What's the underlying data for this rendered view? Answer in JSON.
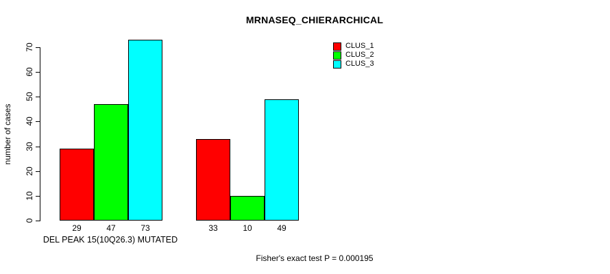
{
  "chart_data": {
    "type": "bar",
    "title": "MRNASEQ_CHIERARCHICAL",
    "ylabel": "number of cases",
    "xlabel": "DEL PEAK 15(10Q26.3) MUTATED",
    "annotation": "Fisher's exact test P = 0.000195",
    "ylim": [
      0,
      70
    ],
    "yticks": [
      0,
      10,
      20,
      30,
      40,
      50,
      60,
      70
    ],
    "grid": false,
    "legend_position": "top-right-inside",
    "series": [
      {
        "name": "CLUS_1",
        "color": "#ff0000"
      },
      {
        "name": "CLUS_2",
        "color": "#00ff00"
      },
      {
        "name": "CLUS_3",
        "color": "#00ffff"
      }
    ],
    "groups": [
      {
        "name": "group-1",
        "values": [
          29,
          47,
          73
        ]
      },
      {
        "name": "group-2",
        "values": [
          33,
          10,
          49
        ]
      }
    ],
    "bar_value_labels": [
      [
        29,
        47,
        73
      ],
      [
        33,
        10,
        49
      ]
    ]
  },
  "colors": {
    "background": "#ffffff",
    "axis": "#000000",
    "text": "#000000"
  }
}
